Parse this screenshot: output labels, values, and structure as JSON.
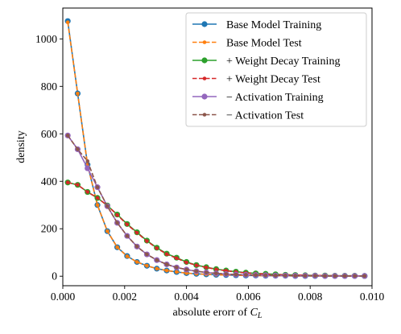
{
  "chart_data": {
    "type": "line",
    "title": "",
    "xlabel": "absolute erorr of ",
    "xlabel_var": "C",
    "xlabel_sub": "L",
    "ylabel": "density",
    "xlim": [
      0.0,
      0.01
    ],
    "ylim": [
      -40,
      1130
    ],
    "xticks": [
      0.0,
      0.002,
      0.004,
      0.006,
      0.008,
      0.01
    ],
    "xtick_labels": [
      "0.000",
      "0.002",
      "0.004",
      "0.006",
      "0.008",
      "0.010"
    ],
    "yticks": [
      0,
      200,
      400,
      600,
      800,
      1000
    ],
    "ytick_labels": [
      "0",
      "200",
      "400",
      "600",
      "800",
      "1000"
    ],
    "grid": false,
    "legend_position": "top-right",
    "x": [
      0.00016,
      0.00048,
      0.0008,
      0.00112,
      0.00144,
      0.00176,
      0.00208,
      0.0024,
      0.00272,
      0.00304,
      0.00336,
      0.00368,
      0.004,
      0.00432,
      0.00464,
      0.00496,
      0.00528,
      0.0056,
      0.00592,
      0.00624,
      0.00656,
      0.00688,
      0.0072,
      0.00752,
      0.00784,
      0.00816,
      0.00848,
      0.0088,
      0.00912,
      0.00944,
      0.00976
    ],
    "series": [
      {
        "name": "Base Model Training",
        "color": "#1f77b4",
        "linestyle": "solid",
        "marker": "circle",
        "values": [
          1075,
          770,
          470,
          300,
          190,
          122,
          85,
          60,
          44,
          32,
          24,
          18,
          13,
          10,
          8,
          6,
          5,
          4,
          3,
          3,
          2,
          2,
          2,
          1,
          1,
          1,
          1,
          1,
          1,
          1,
          1
        ]
      },
      {
        "name": "Base Model Test",
        "color": "#ff7f0e",
        "linestyle": "dashed",
        "marker": "small-circle",
        "values": [
          1070,
          770,
          470,
          300,
          190,
          122,
          84,
          60,
          44,
          32,
          24,
          18,
          13,
          10,
          8,
          6,
          5,
          4,
          3,
          3,
          2,
          2,
          2,
          1,
          1,
          1,
          1,
          1,
          1,
          1,
          1
        ]
      },
      {
        "name": "+ Weight Decay Training",
        "color": "#2ca02c",
        "linestyle": "solid",
        "marker": "circle",
        "values": [
          395,
          385,
          355,
          330,
          298,
          260,
          220,
          185,
          150,
          120,
          95,
          78,
          60,
          47,
          38,
          30,
          24,
          19,
          15,
          12,
          10,
          8,
          6,
          5,
          4,
          3,
          3,
          2,
          2,
          2,
          1
        ]
      },
      {
        "name": "+ Weight Decay Test",
        "color": "#d62728",
        "linestyle": "dashed",
        "marker": "small-circle",
        "values": [
          395,
          385,
          355,
          330,
          298,
          258,
          218,
          183,
          148,
          118,
          93,
          76,
          58,
          46,
          37,
          29,
          23,
          18,
          14,
          11,
          9,
          7,
          6,
          5,
          4,
          3,
          3,
          2,
          2,
          2,
          1
        ]
      },
      {
        "name": "− Activation Training",
        "color": "#9467bd",
        "linestyle": "solid",
        "marker": "circle",
        "values": [
          593,
          535,
          455,
          375,
          295,
          225,
          170,
          125,
          92,
          68,
          50,
          37,
          28,
          21,
          16,
          12,
          9,
          7,
          6,
          5,
          4,
          3,
          3,
          2,
          2,
          2,
          1,
          1,
          1,
          1,
          1
        ]
      },
      {
        "name": "− Activation Test",
        "color": "#8c564b",
        "linestyle": "dashed",
        "marker": "small-circle",
        "values": [
          593,
          535,
          485,
          375,
          295,
          225,
          170,
          125,
          92,
          68,
          50,
          37,
          28,
          21,
          16,
          12,
          9,
          7,
          6,
          5,
          4,
          3,
          3,
          2,
          2,
          2,
          1,
          1,
          1,
          1,
          1
        ]
      }
    ]
  }
}
